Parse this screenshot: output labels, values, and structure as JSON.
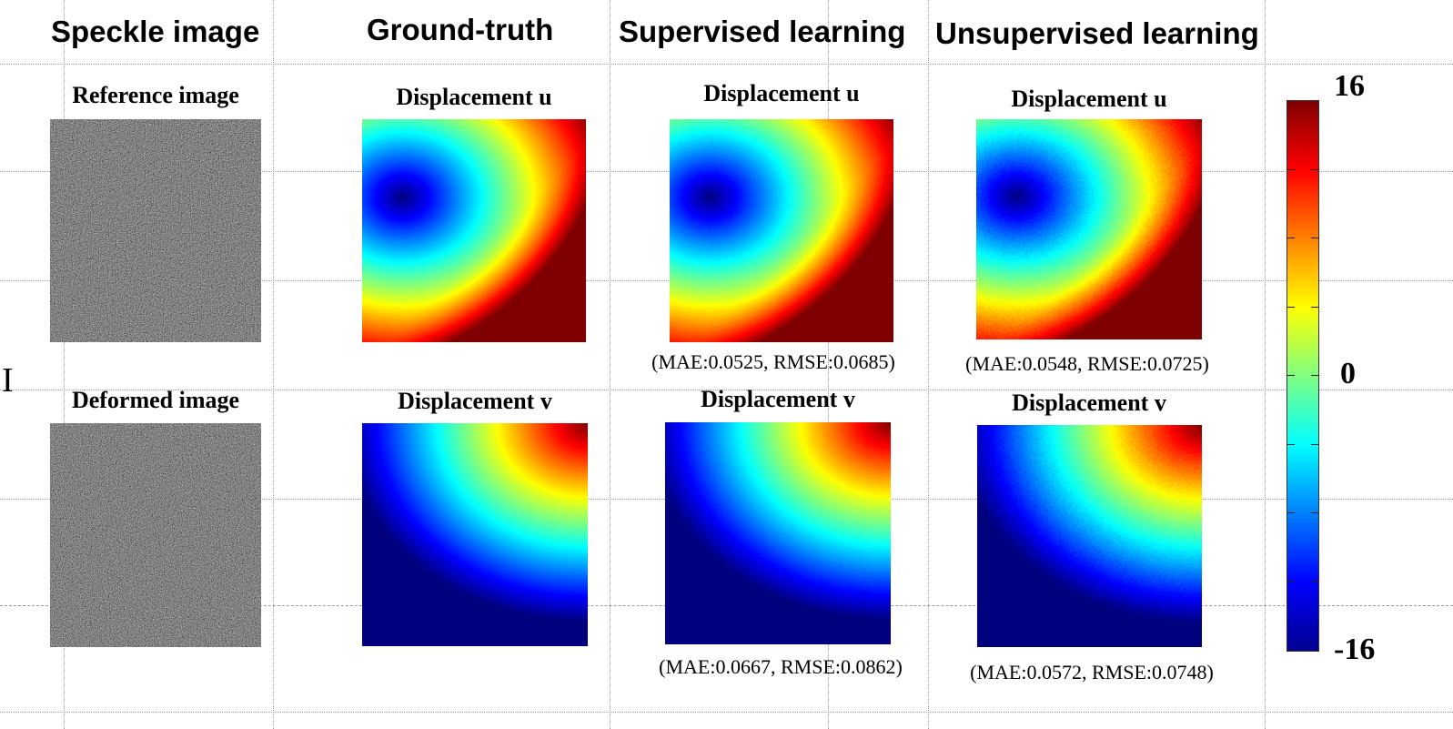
{
  "columns": {
    "speckle": "Speckle image",
    "ground_truth": "Ground-truth",
    "supervised": "Supervised learning",
    "unsupervised": "Unsupervised learning"
  },
  "speckle": {
    "reference_title": "Reference image",
    "deformed_title": "Deformed image"
  },
  "ground_truth": {
    "u_title": "Displacement u",
    "v_title": "Displacement v"
  },
  "supervised": {
    "u_title": "Displacement u",
    "v_title": "Displacement v",
    "u_metric": "(MAE:0.0525, RMSE:0.0685)",
    "v_metric": "(MAE:0.0667, RMSE:0.0862)"
  },
  "unsupervised": {
    "u_title": "Displacement u",
    "v_title": "Displacement v",
    "u_metric": "(MAE:0.0548, RMSE:0.0725)",
    "v_metric": "(MAE:0.0572, RMSE:0.0748)"
  },
  "colorbar": {
    "max_label": "16",
    "mid_label": "0",
    "min_label": "-16",
    "colormap": "jet"
  },
  "stray_glyph": "I"
}
